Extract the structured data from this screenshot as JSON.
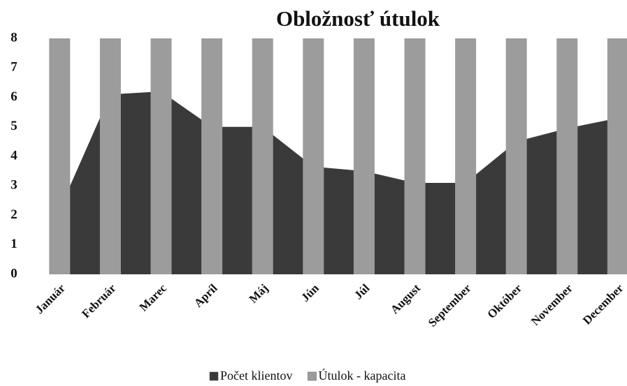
{
  "chart_data": {
    "type": "combo",
    "title": "Obložnosť útulok",
    "categories": [
      "Január",
      "Február",
      "Marec",
      "Apríl",
      "Máj",
      "Jún",
      "Júl",
      "August",
      "September",
      "Október",
      "November",
      "December"
    ],
    "series": [
      {
        "name": "Počet klientov",
        "type": "area",
        "color": "#3a3a3a",
        "values": [
          2.2,
          6.1,
          6.2,
          5.0,
          5.0,
          3.65,
          3.5,
          3.1,
          3.1,
          4.5,
          4.95,
          5.3
        ]
      },
      {
        "name": "Útulok - kapacita",
        "type": "bar",
        "color": "#9c9c9c",
        "values": [
          8,
          8,
          8,
          8,
          8,
          8,
          8,
          8,
          8,
          8,
          8,
          8
        ]
      }
    ],
    "ylim": [
      0,
      8
    ],
    "yticks": [
      0,
      1,
      2,
      3,
      4,
      5,
      6,
      7,
      8
    ],
    "grid": false,
    "legend": "bottom"
  }
}
